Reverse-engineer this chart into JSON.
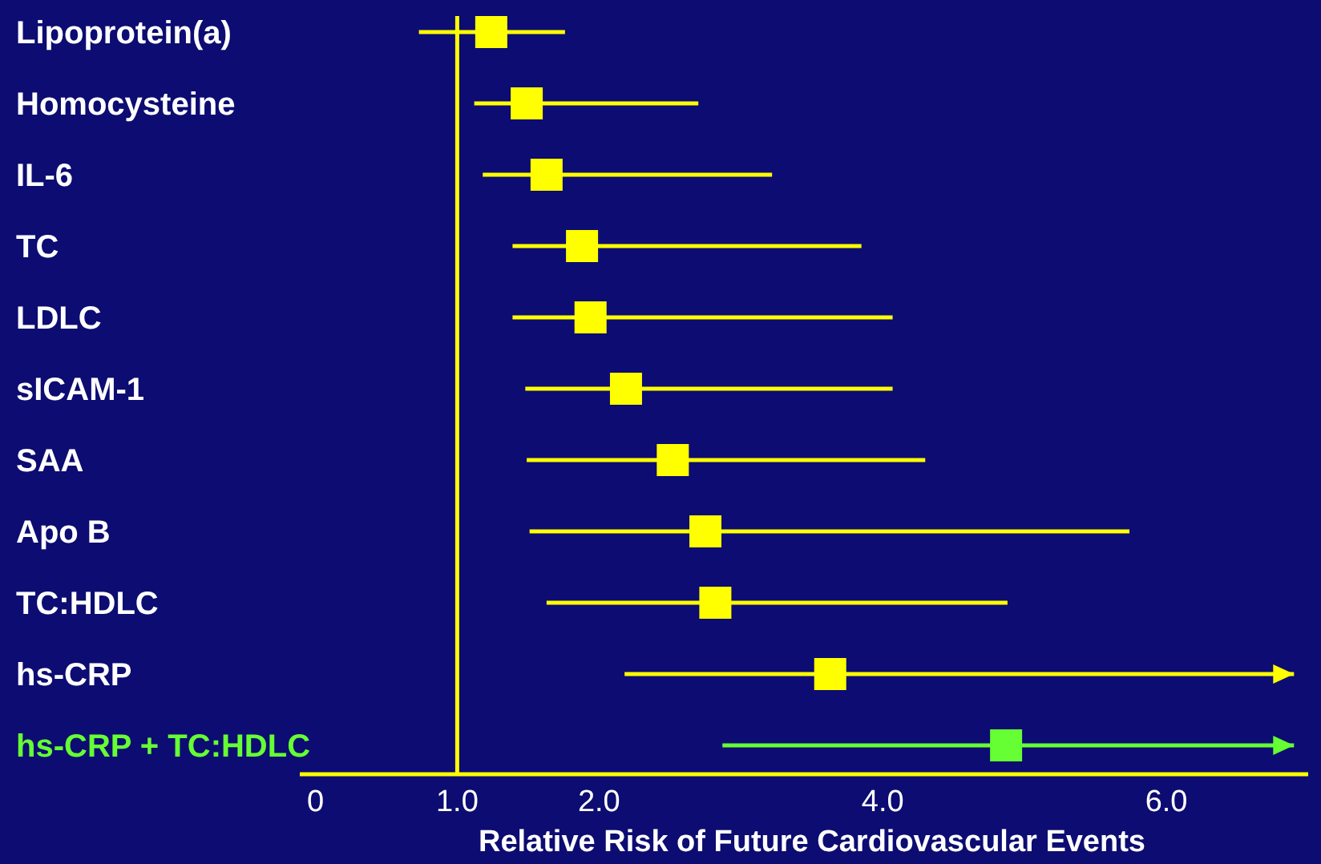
{
  "chart_data": {
    "type": "scatter",
    "orientation": "horizontal",
    "marker": "square",
    "xlabel": "Relative Risk of Future Cardiovascular Events",
    "categories": [
      "Lipoprotein(a)",
      "Homocysteine",
      "IL-6",
      "TC",
      "LDLC",
      "sICAM-1",
      "SAA",
      "Apo B",
      "TC:HDLC",
      "hs-CRP",
      "hs-CRP + TC:HDLC"
    ],
    "values": [
      1.24,
      1.49,
      1.63,
      1.88,
      1.94,
      2.19,
      2.52,
      2.75,
      2.82,
      3.63,
      4.87
    ],
    "errors": [
      [
        0.73,
        1.76
      ],
      [
        1.12,
        2.7
      ],
      [
        1.18,
        3.22
      ],
      [
        1.39,
        3.85
      ],
      [
        1.39,
        4.07
      ],
      [
        1.48,
        4.07
      ],
      [
        1.49,
        4.3
      ],
      [
        1.51,
        5.74
      ],
      [
        1.63,
        4.88
      ],
      [
        2.18,
        6.9
      ],
      [
        2.87,
        6.9
      ]
    ],
    "colors": [
      "#ffff00",
      "#ffff00",
      "#ffff00",
      "#ffff00",
      "#ffff00",
      "#ffff00",
      "#ffff00",
      "#ffff00",
      "#ffff00",
      "#ffff00",
      "#66ff33"
    ],
    "xlim": [
      -0.11,
      7.0
    ],
    "xticks": [
      {
        "value": 0,
        "label": "0"
      },
      {
        "value": 1,
        "label": "1.0"
      },
      {
        "value": 2,
        "label": "2.0"
      },
      {
        "value": 4,
        "label": "4.0"
      },
      {
        "value": 6,
        "label": "6.0"
      }
    ],
    "ref_lines": [
      {
        "axis": "x",
        "value": 1,
        "color": "#ffff00"
      }
    ],
    "grid": false
  }
}
